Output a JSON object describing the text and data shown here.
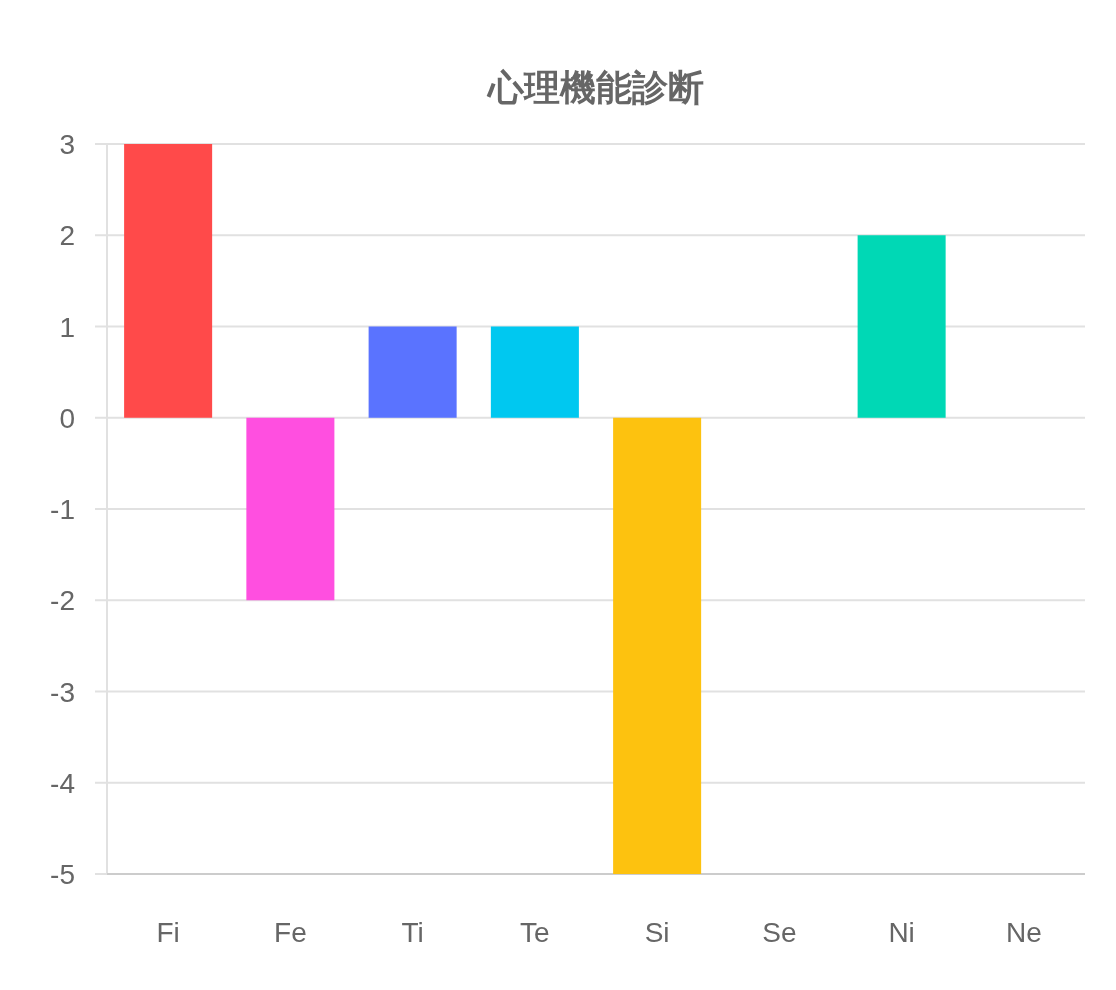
{
  "chart_data": {
    "type": "bar",
    "title": "心理機能診断",
    "categories": [
      "Fi",
      "Fe",
      "Ti",
      "Te",
      "Si",
      "Se",
      "Ni",
      "Ne"
    ],
    "values": [
      3,
      -2,
      1,
      1,
      -5,
      0,
      2,
      0
    ],
    "colors": [
      "#ff4a4a",
      "#ff4fe0",
      "#5a73ff",
      "#00c8f0",
      "#fdc20f",
      "#ff9f40",
      "#00d8b5",
      "#9966ff"
    ],
    "ylim": [
      -5,
      3
    ],
    "yticks": [
      -5,
      -4,
      -3,
      -2,
      -1,
      0,
      1,
      2,
      3
    ],
    "grid": "y"
  }
}
